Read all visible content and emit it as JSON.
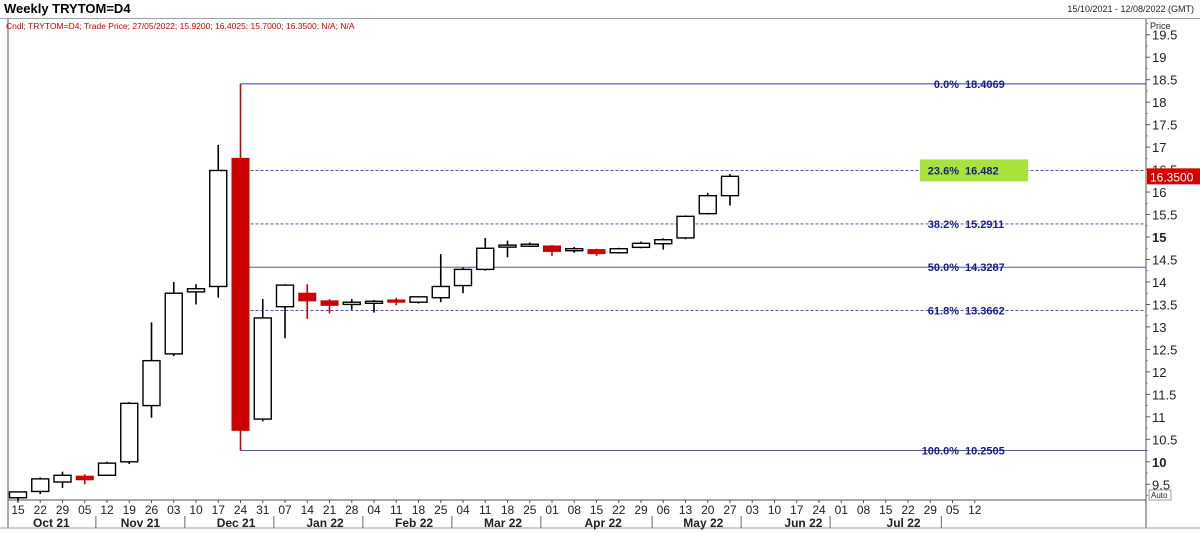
{
  "header": {
    "title": "Weekly TRYTOM=D4",
    "date_range": "15/10/2021 - 12/08/2022 (GMT)",
    "price_label": "Price",
    "auto_label": "Auto"
  },
  "chart_data": {
    "type": "candlestick",
    "legend": "Cndl; TRYTOM=D4; Trade Price; 27/05/2022; 15.9200; 16.4025; 15.7000; 16.3500; N/A; N/A",
    "last_price": "16.3500",
    "ylim": [
      9.15,
      19.85
    ],
    "y_ticks": [
      {
        "v": 9.5,
        "label": "9.5"
      },
      {
        "v": 10,
        "label": "10"
      },
      {
        "v": 10.5,
        "label": "10.5"
      },
      {
        "v": 11,
        "label": "11"
      },
      {
        "v": 11.5,
        "label": "11.5"
      },
      {
        "v": 12,
        "label": "12"
      },
      {
        "v": 12.5,
        "label": "12.5"
      },
      {
        "v": 13,
        "label": "13"
      },
      {
        "v": 13.5,
        "label": "13.5"
      },
      {
        "v": 14,
        "label": "14"
      },
      {
        "v": 14.5,
        "label": "14.5"
      },
      {
        "v": 15,
        "label": "15"
      },
      {
        "v": 15.5,
        "label": "15.5"
      },
      {
        "v": 16,
        "label": "16"
      },
      {
        "v": 16.5,
        "label": "16.5"
      },
      {
        "v": 17,
        "label": "17"
      },
      {
        "v": 17.5,
        "label": "17.5"
      },
      {
        "v": 18,
        "label": "18"
      },
      {
        "v": 18.5,
        "label": "18.5"
      },
      {
        "v": 19,
        "label": "19"
      },
      {
        "v": 19.5,
        "label": "19.5"
      }
    ],
    "major_ticks": [
      10,
      15
    ],
    "x_day_labels": [
      "15",
      "22",
      "29",
      "05",
      "12",
      "19",
      "26",
      "03",
      "10",
      "17",
      "24",
      "31",
      "07",
      "14",
      "21",
      "28",
      "04",
      "11",
      "18",
      "25",
      "04",
      "11",
      "18",
      "25",
      "01",
      "08",
      "15",
      "22",
      "29",
      "06",
      "13",
      "20",
      "27",
      "03",
      "10",
      "17",
      "24",
      "01",
      "08",
      "15",
      "22",
      "29",
      "05",
      "12"
    ],
    "x_month_labels": [
      {
        "label": "Oct 21",
        "idx": 1.5
      },
      {
        "label": "Nov 21",
        "idx": 5.5
      },
      {
        "label": "Dec 21",
        "idx": 9.8
      },
      {
        "label": "Jan 22",
        "idx": 13.8
      },
      {
        "label": "Feb 22",
        "idx": 17.8
      },
      {
        "label": "Mar 22",
        "idx": 21.8
      },
      {
        "label": "Apr 22",
        "idx": 26.3
      },
      {
        "label": "May 22",
        "idx": 30.8
      },
      {
        "label": "Jun 22",
        "idx": 35.3
      },
      {
        "label": "Jul 22",
        "idx": 39.8
      }
    ],
    "month_separators": [
      3.5,
      7.5,
      11.5,
      15.5,
      19.5,
      23.5,
      28.5,
      32.5,
      36.5,
      41.5
    ],
    "candles": [
      {
        "o": 9.2,
        "h": 9.33,
        "l": 9.1,
        "c": 9.33
      },
      {
        "o": 9.34,
        "h": 9.65,
        "l": 9.28,
        "c": 9.62
      },
      {
        "o": 9.55,
        "h": 9.78,
        "l": 9.42,
        "c": 9.7
      },
      {
        "o": 9.68,
        "h": 9.72,
        "l": 9.5,
        "c": 9.6
      },
      {
        "o": 9.7,
        "h": 10.0,
        "l": 9.7,
        "c": 9.97
      },
      {
        "o": 10.0,
        "h": 11.33,
        "l": 9.95,
        "c": 11.3
      },
      {
        "o": 11.25,
        "h": 13.1,
        "l": 10.98,
        "c": 12.25
      },
      {
        "o": 12.4,
        "h": 14.0,
        "l": 12.35,
        "c": 13.75
      },
      {
        "o": 13.78,
        "h": 13.95,
        "l": 13.5,
        "c": 13.85
      },
      {
        "o": 13.9,
        "h": 17.05,
        "l": 13.65,
        "c": 16.48
      },
      {
        "o": 16.75,
        "h": 18.41,
        "l": 10.25,
        "c": 10.7
      },
      {
        "o": 10.95,
        "h": 13.62,
        "l": 10.9,
        "c": 13.2
      },
      {
        "o": 13.45,
        "h": 13.95,
        "l": 12.75,
        "c": 13.93
      },
      {
        "o": 13.75,
        "h": 13.95,
        "l": 13.18,
        "c": 13.58
      },
      {
        "o": 13.58,
        "h": 13.62,
        "l": 13.3,
        "c": 13.48
      },
      {
        "o": 13.5,
        "h": 13.62,
        "l": 13.38,
        "c": 13.55
      },
      {
        "o": 13.55,
        "h": 13.6,
        "l": 13.32,
        "c": 13.57
      },
      {
        "o": 13.6,
        "h": 13.65,
        "l": 13.48,
        "c": 13.55
      },
      {
        "o": 13.55,
        "h": 13.68,
        "l": 13.52,
        "c": 13.67
      },
      {
        "o": 13.65,
        "h": 14.62,
        "l": 13.55,
        "c": 13.9
      },
      {
        "o": 13.92,
        "h": 14.32,
        "l": 13.75,
        "c": 14.28
      },
      {
        "o": 14.28,
        "h": 14.98,
        "l": 14.25,
        "c": 14.75
      },
      {
        "o": 14.8,
        "h": 14.92,
        "l": 14.55,
        "c": 14.82
      },
      {
        "o": 14.82,
        "h": 14.88,
        "l": 14.78,
        "c": 14.84
      },
      {
        "o": 14.8,
        "h": 14.82,
        "l": 14.58,
        "c": 14.68
      },
      {
        "o": 14.7,
        "h": 14.78,
        "l": 14.65,
        "c": 14.74
      },
      {
        "o": 14.72,
        "h": 14.74,
        "l": 14.58,
        "c": 14.63
      },
      {
        "o": 14.65,
        "h": 14.76,
        "l": 14.63,
        "c": 14.74
      },
      {
        "o": 14.77,
        "h": 14.9,
        "l": 14.75,
        "c": 14.86
      },
      {
        "o": 14.85,
        "h": 14.97,
        "l": 14.72,
        "c": 14.94
      },
      {
        "o": 14.98,
        "h": 15.48,
        "l": 14.95,
        "c": 15.46
      },
      {
        "o": 15.52,
        "h": 15.98,
        "l": 15.5,
        "c": 15.92
      },
      {
        "o": 15.92,
        "h": 16.4,
        "l": 15.7,
        "c": 16.35
      }
    ],
    "fib_levels": [
      {
        "pct": "0.0%",
        "value": "18.4069",
        "level": 18.4069,
        "dashed": false,
        "highlight": false
      },
      {
        "pct": "23.6%",
        "value": "16.482",
        "level": 16.482,
        "dashed": true,
        "highlight": true
      },
      {
        "pct": "38.2%",
        "value": "15.2911",
        "level": 15.2911,
        "dashed": true,
        "highlight": false
      },
      {
        "pct": "50.0%",
        "value": "14.3287",
        "level": 14.3287,
        "dashed": false,
        "highlight": false
      },
      {
        "pct": "61.8%",
        "value": "13.3662",
        "level": 13.3662,
        "dashed": true,
        "highlight": false
      },
      {
        "pct": "100.0%",
        "value": "10.2505",
        "level": 10.2505,
        "dashed": false,
        "highlight": false
      }
    ],
    "fib_start_idx": 10,
    "colors": {
      "up_fill": "#ffffff",
      "up_stroke": "#000000",
      "down_fill": "#cc0000",
      "fib_line": "#3b3b8f",
      "fib_text": "#1a1a8c",
      "highlight": "#a8e23a",
      "price_tag": "#d40000",
      "legend_text": "#cc0000"
    }
  }
}
